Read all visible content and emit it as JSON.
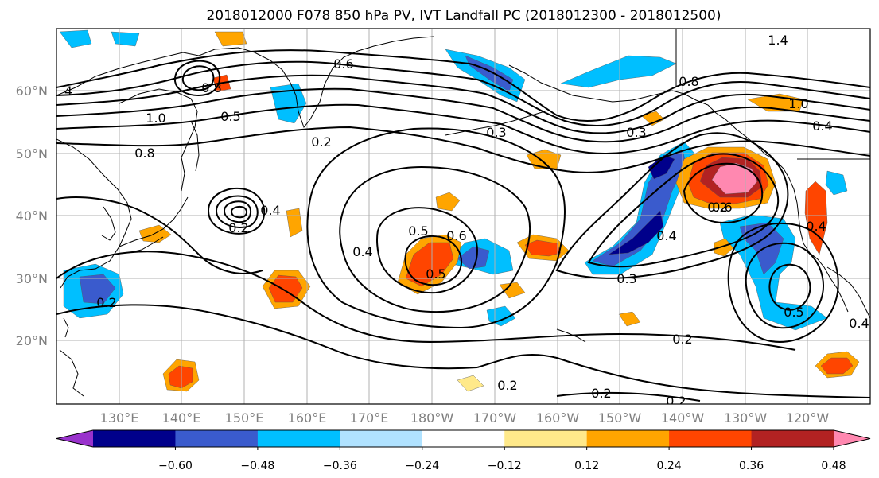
{
  "title": "2018012000 F078 850 hPa PV, IVT Landfall PC (2018012300 - 2018012500)",
  "lat_labels": [
    "60°N",
    "50°N",
    "40°N",
    "30°N",
    "20°N"
  ],
  "lon_labels": [
    "130°E",
    "140°E",
    "150°E",
    "160°E",
    "170°E",
    "180°W",
    "170°W",
    "160°W",
    "150°W",
    "140°W",
    "130°W",
    "120°W"
  ],
  "colorbar": {
    "tick_labels": [
      "−0.60",
      "−0.48",
      "−0.36",
      "−0.24",
      "−0.12",
      "0.12",
      "0.24",
      "0.36",
      "0.48",
      "0.60"
    ],
    "colors": [
      "#9932cc",
      "#00008b",
      "#3a5bcd",
      "#00bfff",
      "#b0e2ff",
      "#ffffff",
      "#ffe98a",
      "#ffa500",
      "#ff4500",
      "#b22222",
      "#ff88b0"
    ]
  },
  "contour_labels": [
    "4",
    "0.8",
    "0.6",
    "1.0",
    "0.5",
    "0.2",
    "0.8",
    "0.3",
    "0.3",
    "0.8",
    "1.4",
    "0.4",
    "1.0",
    "0.4",
    "0.5",
    "0.6",
    "0.4",
    "0.5",
    "0.6",
    "0.4",
    "0.3",
    "0.2",
    "0.5",
    "0.2",
    "0.2",
    "0.2",
    "0.2",
    "0.2",
    "0.4",
    "0.4",
    "0.2"
  ]
}
